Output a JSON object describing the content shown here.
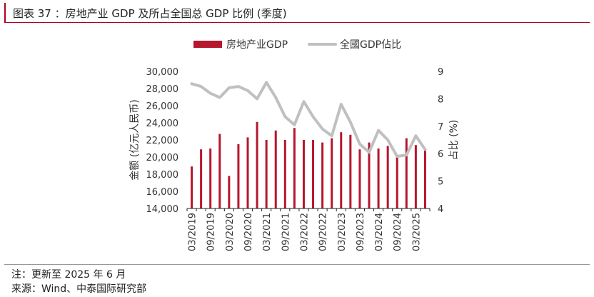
{
  "header": {
    "title": "图表 37 ：房地产业 GDP 及所占全国总 GDP 比例 (季度)"
  },
  "footer": {
    "note": "注：更新至 2025 年 6 月",
    "source": "来源：Wind、中泰国际研究部"
  },
  "colors": {
    "bar": "#b5172e",
    "line": "#c0c0c0",
    "axis": "#222222",
    "text": "#333333"
  },
  "chart_data": {
    "type": "bar",
    "legend": {
      "placement": "top",
      "entries": [
        "房地产业GDP",
        "全國GDP佔比"
      ]
    },
    "ylabel": "金额 (亿元人民币)",
    "y2label": "占比 (%)",
    "ylim": [
      14000,
      30000
    ],
    "y_ticks": [
      "30,000",
      "28,000",
      "26,000",
      "24,000",
      "22,000",
      "20,000",
      "18,000",
      "16,000",
      "14,000"
    ],
    "y2lim": [
      4,
      9
    ],
    "y2_ticks": [
      "9",
      "8",
      "7",
      "6",
      "5",
      "4"
    ],
    "x_tick_labels": [
      "03/2019",
      "09/2019",
      "03/2020",
      "09/2020",
      "03/2021",
      "09/2021",
      "03/2022",
      "09/2022",
      "03/2023",
      "09/2023",
      "03/2024",
      "09/2024",
      "03/2025"
    ],
    "categories": [
      "03/2019",
      "06/2019",
      "09/2019",
      "12/2019",
      "03/2020",
      "06/2020",
      "09/2020",
      "12/2020",
      "03/2021",
      "06/2021",
      "09/2021",
      "12/2021",
      "03/2022",
      "06/2022",
      "09/2022",
      "12/2022",
      "03/2023",
      "06/2023",
      "09/2023",
      "12/2023",
      "03/2024",
      "06/2024",
      "09/2024",
      "12/2024",
      "03/2025",
      "06/2025"
    ],
    "series": [
      {
        "name": "房地产业GDP",
        "type": "bar",
        "axis": "left",
        "values": [
          18900,
          20900,
          21000,
          22700,
          17800,
          21500,
          22300,
          24100,
          22000,
          23100,
          22000,
          23400,
          22000,
          22000,
          21700,
          22200,
          22900,
          22600,
          20900,
          21700,
          21000,
          21300,
          20000,
          22200,
          21400,
          20900
        ]
      },
      {
        "name": "全國GDP佔比",
        "type": "line",
        "axis": "right",
        "values": [
          8.55,
          8.45,
          8.2,
          8.05,
          8.4,
          8.45,
          8.3,
          8.0,
          8.6,
          8.05,
          7.35,
          7.05,
          7.9,
          7.35,
          6.9,
          6.65,
          7.8,
          7.15,
          6.35,
          6.05,
          6.85,
          6.5,
          5.9,
          5.95,
          6.65,
          6.15
        ]
      }
    ]
  }
}
